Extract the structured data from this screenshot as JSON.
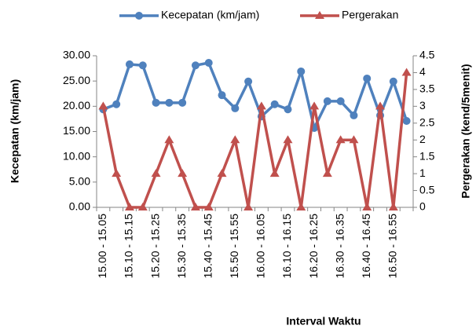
{
  "chart_data": {
    "type": "line",
    "categories": [
      "15.00 - 15.05",
      null,
      "15.10 - 15.15",
      null,
      "15.20 - 15.25",
      null,
      "15.30 - 15.35",
      null,
      "15.40 - 15.45",
      null,
      "15.50 - 15.55",
      null,
      "16.00 - 16.05",
      null,
      "16.10 - 16.15",
      null,
      "16.20 - 16.25",
      null,
      "16.30 - 16.35",
      null,
      "16.40 - 16.45",
      null,
      "16.50 - 16.55",
      null
    ],
    "series": [
      {
        "name": "Kecepatan (km/jam)",
        "color": "#4f81bd",
        "marker": "circle",
        "values": [
          19.4,
          20.4,
          28.3,
          28.1,
          20.7,
          20.7,
          20.7,
          28.1,
          28.6,
          22.2,
          19.6,
          24.9,
          18.0,
          20.4,
          19.4,
          26.9,
          15.7,
          21.0,
          21.0,
          18.2,
          25.5,
          18.2,
          24.9,
          17.1
        ]
      },
      {
        "name": "Pergerakan",
        "color": "#c0504d",
        "marker": "triangle",
        "axis": "y2",
        "values": [
          3,
          1,
          0,
          0,
          1,
          2,
          1,
          0,
          0,
          1,
          2,
          0,
          3,
          1,
          2,
          0,
          3,
          1,
          2,
          2,
          0,
          3,
          0,
          4
        ]
      }
    ],
    "x_label": "Interval Waktu",
    "y_label": "Kecepatan (km/jam)",
    "y2_label": "Pergerakan (kend/5menit)",
    "ylim": [
      0,
      30
    ],
    "yticks": [
      {
        "value": 0,
        "label": "0.00"
      },
      {
        "value": 5,
        "label": "5.00"
      },
      {
        "value": 10,
        "label": "10.00"
      },
      {
        "value": 15,
        "label": "15.00"
      },
      {
        "value": 20,
        "label": "20.00"
      },
      {
        "value": 25,
        "label": "25.00"
      },
      {
        "value": 30,
        "label": "30.00"
      }
    ],
    "y2lim": [
      0,
      4.5
    ],
    "y2ticks": [
      0,
      0.5,
      1,
      1.5,
      2,
      2.5,
      3,
      3.5,
      4,
      4.5
    ],
    "legend": "top",
    "grid": false
  }
}
